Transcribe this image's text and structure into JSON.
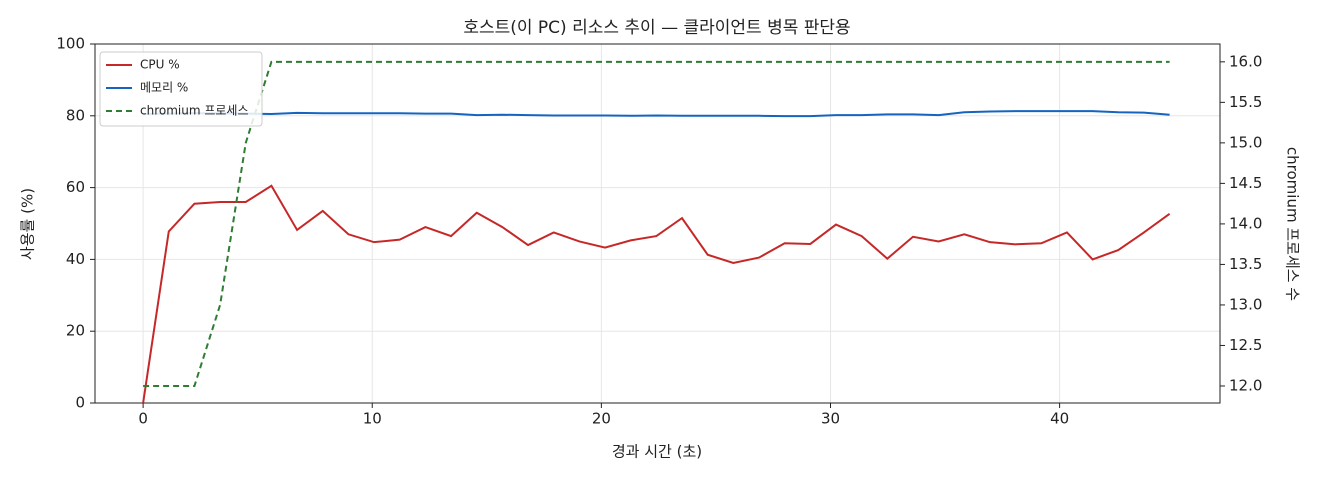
{
  "chart_data": {
    "type": "line",
    "title": "호스트(이 PC) 리소스 추이 — 클라이언트 병목 판단용",
    "xlabel": "경과 시간 (초)",
    "ylabel": "사용률 (%)",
    "y2label": "chromium 프로세스 수",
    "x": [
      0,
      1.12,
      2.24,
      3.36,
      4.48,
      5.6,
      6.72,
      7.84,
      8.96,
      10.08,
      11.2,
      12.32,
      13.44,
      14.56,
      15.68,
      16.8,
      17.92,
      19.04,
      20.16,
      21.28,
      22.4,
      23.52,
      24.64,
      25.76,
      26.88,
      28,
      29.12,
      30.24,
      31.36,
      32.48,
      33.6,
      34.72,
      35.84,
      36.96,
      38.08,
      39.2,
      40.32,
      41.44,
      42.56,
      43.68,
      44.8
    ],
    "series": [
      {
        "name": "CPU %",
        "color": "#c62828",
        "linestyle": "solid",
        "values": [
          0,
          47.8,
          55.5,
          56,
          56,
          60.5,
          48.2,
          53.5,
          47,
          44.8,
          45.5,
          49,
          46.5,
          53,
          49,
          44,
          47.5,
          45,
          43.3,
          45.3,
          46.5,
          51.5,
          41.3,
          39,
          40.5,
          44.5,
          44.3,
          49.7,
          46.5,
          40.2,
          46.3,
          45,
          47,
          44.8,
          44.2,
          44.5,
          47.5,
          40,
          42.6,
          47.5,
          52.7
        ]
      },
      {
        "name": "메모리 %",
        "color": "#1565c0",
        "linestyle": "solid",
        "values": [
          80.5,
          80.6,
          80.7,
          80.7,
          80.6,
          80.5,
          80.8,
          80.7,
          80.7,
          80.7,
          80.7,
          80.6,
          80.6,
          80.2,
          80.3,
          80.2,
          80.1,
          80.1,
          80.1,
          80.0,
          80.1,
          80.0,
          80.0,
          80.0,
          80.0,
          79.9,
          79.9,
          80.2,
          80.2,
          80.4,
          80.4,
          80.2,
          81.0,
          81.2,
          81.3,
          81.3,
          81.3,
          81.3,
          81.0,
          80.9,
          80.3
        ]
      },
      {
        "name": "chromium 프로세스",
        "color": "#2e7d32",
        "linestyle": "dashed",
        "axis": "y2",
        "values": [
          12,
          12,
          12,
          13,
          15,
          16,
          16,
          16,
          16,
          16,
          16,
          16,
          16,
          16,
          16,
          16,
          16,
          16,
          16,
          16,
          16,
          16,
          16,
          16,
          16,
          16,
          16,
          16,
          16,
          16,
          16,
          16,
          16,
          16,
          16,
          16,
          16,
          16,
          16,
          16,
          16
        ]
      }
    ],
    "xlim": [
      -2.1,
      47
    ],
    "xticks": [
      0,
      10,
      20,
      30,
      40
    ],
    "ylim": [
      0,
      100
    ],
    "yticks": [
      0,
      20,
      40,
      60,
      80,
      100
    ],
    "y2lim": [
      11.79,
      16.22
    ],
    "y2ticks": [
      {
        "value": 12,
        "label": "12.0"
      },
      12.5,
      {
        "value": 13,
        "label": "13.0"
      },
      13.5,
      {
        "value": 14,
        "label": "14.0"
      },
      14.5,
      {
        "value": 15,
        "label": "15.0"
      },
      15.5,
      {
        "value": 16,
        "label": "16.0"
      }
    ],
    "grid": true,
    "legend": "upper left"
  }
}
